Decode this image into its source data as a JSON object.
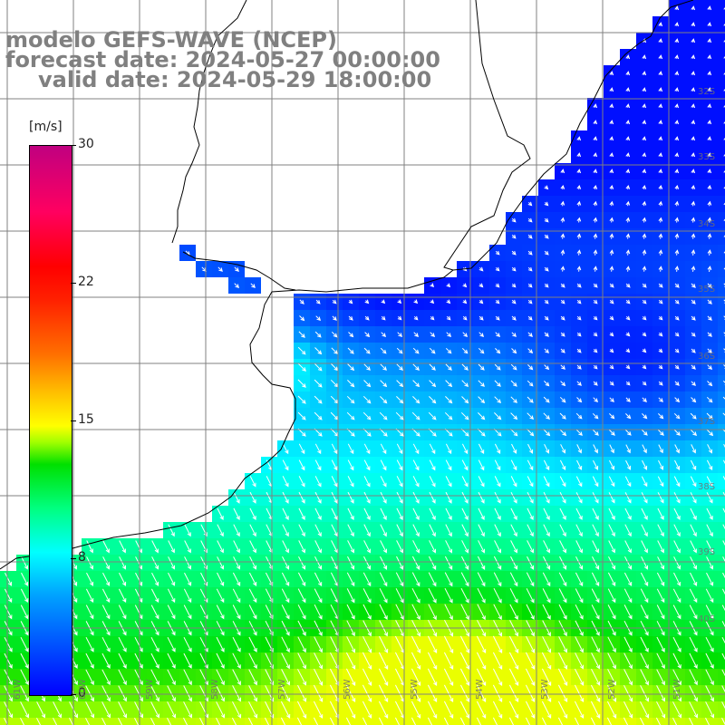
{
  "title": {
    "model": "modelo GEFS-WAVE (NCEP)",
    "forecast": "forecast date: 2024-05-27 00:00:00",
    "valid": "valid date: 2024-05-29 18:00:00"
  },
  "colorbar": {
    "unit": "[m/s]",
    "ticks": [
      "30",
      "22",
      "15",
      "8",
      "0"
    ],
    "stops": [
      "#0000ff",
      "#00a0ff",
      "#00ffff",
      "#00ff80",
      "#00e000",
      "#a0ff00",
      "#ffff00",
      "#ffc000",
      "#ff7000",
      "#ff0000",
      "#c00080"
    ]
  },
  "lat_labels": [
    "32S",
    "33S",
    "34S",
    "35S",
    "36S",
    "37S",
    "38S",
    "39S",
    "40S"
  ],
  "lon_labels": [
    "61W",
    "60W",
    "59W",
    "58W",
    "57W",
    "56W",
    "55W",
    "54W",
    "53W",
    "52W",
    "51W"
  ],
  "colors": {
    "land": "#ffffff",
    "coast": "#000000",
    "grid": "#808080",
    "arrow": "#ffffff",
    "title_text": "#808080"
  }
}
